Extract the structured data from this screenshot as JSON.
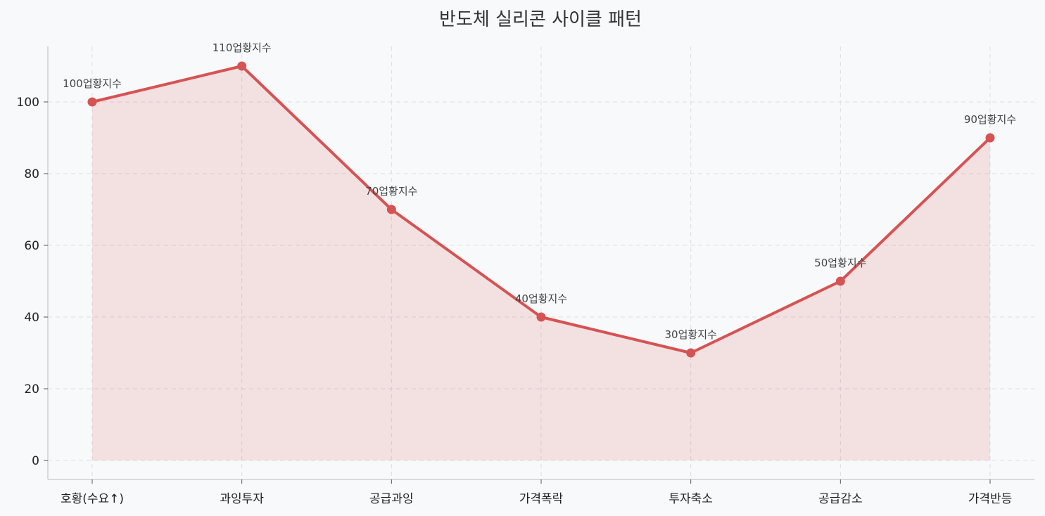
{
  "chart_data": {
    "type": "line",
    "title": "반도체 실리콘 사이클 패턴",
    "xlabel": "",
    "ylabel": "",
    "categories": [
      "호황(수요↑)",
      "과잉투자",
      "공급과잉",
      "가격폭락",
      "투자축소",
      "공급감소",
      "가격반등"
    ],
    "series": [
      {
        "values": [
          100,
          110,
          70,
          40,
          30,
          50,
          90
        ],
        "color": "#d65353",
        "fill_color": "#d65353",
        "data_labels": [
          "100업황지수",
          "110업황지수",
          "70업황지수",
          "40업황지수",
          "30업황지수",
          "50업황지수",
          "90업황지수"
        ]
      }
    ],
    "yticks": [
      0,
      20,
      40,
      60,
      80,
      100
    ],
    "ylim": [
      -5,
      115.5
    ],
    "grid": true,
    "area_fill": true,
    "legend": "none",
    "background_color": "#f8f9fb"
  }
}
